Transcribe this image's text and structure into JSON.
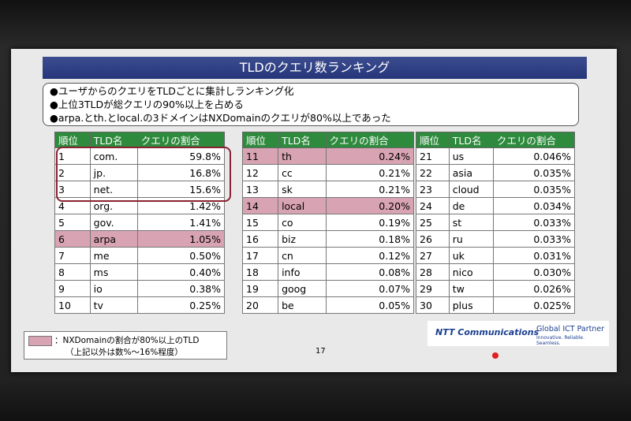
{
  "title": "TLDのクエリ数ランキング",
  "bullets": [
    "●ユーザからのクエリをTLDごとに集計しランキング化",
    "●上位3TLDが総クエリの90%以上を占める",
    "●arpa.とth.とlocal.の3ドメインはNXDomainのクエリが80%以上であった"
  ],
  "tables": [
    {
      "header": [
        "順位",
        "TLD名",
        "クエリの割合"
      ],
      "rows": [
        {
          "cells": [
            "1",
            "com.",
            "59.8%"
          ]
        },
        {
          "cells": [
            "2",
            "jp.",
            "16.8%"
          ]
        },
        {
          "cells": [
            "3",
            "net.",
            "15.6%"
          ]
        },
        {
          "cells": [
            "4",
            "org.",
            "1.42%"
          ]
        },
        {
          "cells": [
            "5",
            "gov.",
            "1.41%"
          ]
        },
        {
          "cells": [
            "6",
            "arpa",
            "1.05%"
          ],
          "highlight": true
        },
        {
          "cells": [
            "7",
            "me",
            "0.50%"
          ]
        },
        {
          "cells": [
            "8",
            "ms",
            "0.40%"
          ]
        },
        {
          "cells": [
            "9",
            "io",
            "0.38%"
          ]
        },
        {
          "cells": [
            "10",
            "tv",
            "0.25%"
          ]
        }
      ]
    },
    {
      "header": [
        "順位",
        "TLD名",
        "クエリの割合"
      ],
      "rows": [
        {
          "cells": [
            "11",
            "th",
            "0.24%"
          ],
          "highlight": true
        },
        {
          "cells": [
            "12",
            "cc",
            "0.21%"
          ]
        },
        {
          "cells": [
            "13",
            "sk",
            "0.21%"
          ]
        },
        {
          "cells": [
            "14",
            "local",
            "0.20%"
          ],
          "highlight": true
        },
        {
          "cells": [
            "15",
            "co",
            "0.19%"
          ]
        },
        {
          "cells": [
            "16",
            "biz",
            "0.18%"
          ]
        },
        {
          "cells": [
            "17",
            "cn",
            "0.12%"
          ]
        },
        {
          "cells": [
            "18",
            "info",
            "0.08%"
          ]
        },
        {
          "cells": [
            "19",
            "goog",
            "0.07%"
          ]
        },
        {
          "cells": [
            "20",
            "be",
            "0.05%"
          ]
        }
      ]
    },
    {
      "header": [
        "順位",
        "TLD名",
        "クエリの割合"
      ],
      "rows": [
        {
          "cells": [
            "21",
            "us",
            "0.046%"
          ]
        },
        {
          "cells": [
            "22",
            "asia",
            "0.035%"
          ]
        },
        {
          "cells": [
            "23",
            "cloud",
            "0.035%"
          ]
        },
        {
          "cells": [
            "24",
            "de",
            "0.034%"
          ]
        },
        {
          "cells": [
            "25",
            "st",
            "0.033%"
          ]
        },
        {
          "cells": [
            "26",
            "ru",
            "0.033%"
          ]
        },
        {
          "cells": [
            "27",
            "uk",
            "0.031%"
          ]
        },
        {
          "cells": [
            "28",
            "nico",
            "0.030%"
          ]
        },
        {
          "cells": [
            "29",
            "tw",
            "0.026%"
          ]
        },
        {
          "cells": [
            "30",
            "plus",
            "0.025%"
          ]
        }
      ]
    }
  ],
  "legend": [
    "：NXDomainの割合が80%以上のTLD",
    "（上記以外は数%～16%程度）"
  ],
  "page_number": "17",
  "logo": {
    "brand": "NTT Communications",
    "tagline": "Global ICT Partner",
    "motto": "Innovative. Reliable. Seamless."
  }
}
